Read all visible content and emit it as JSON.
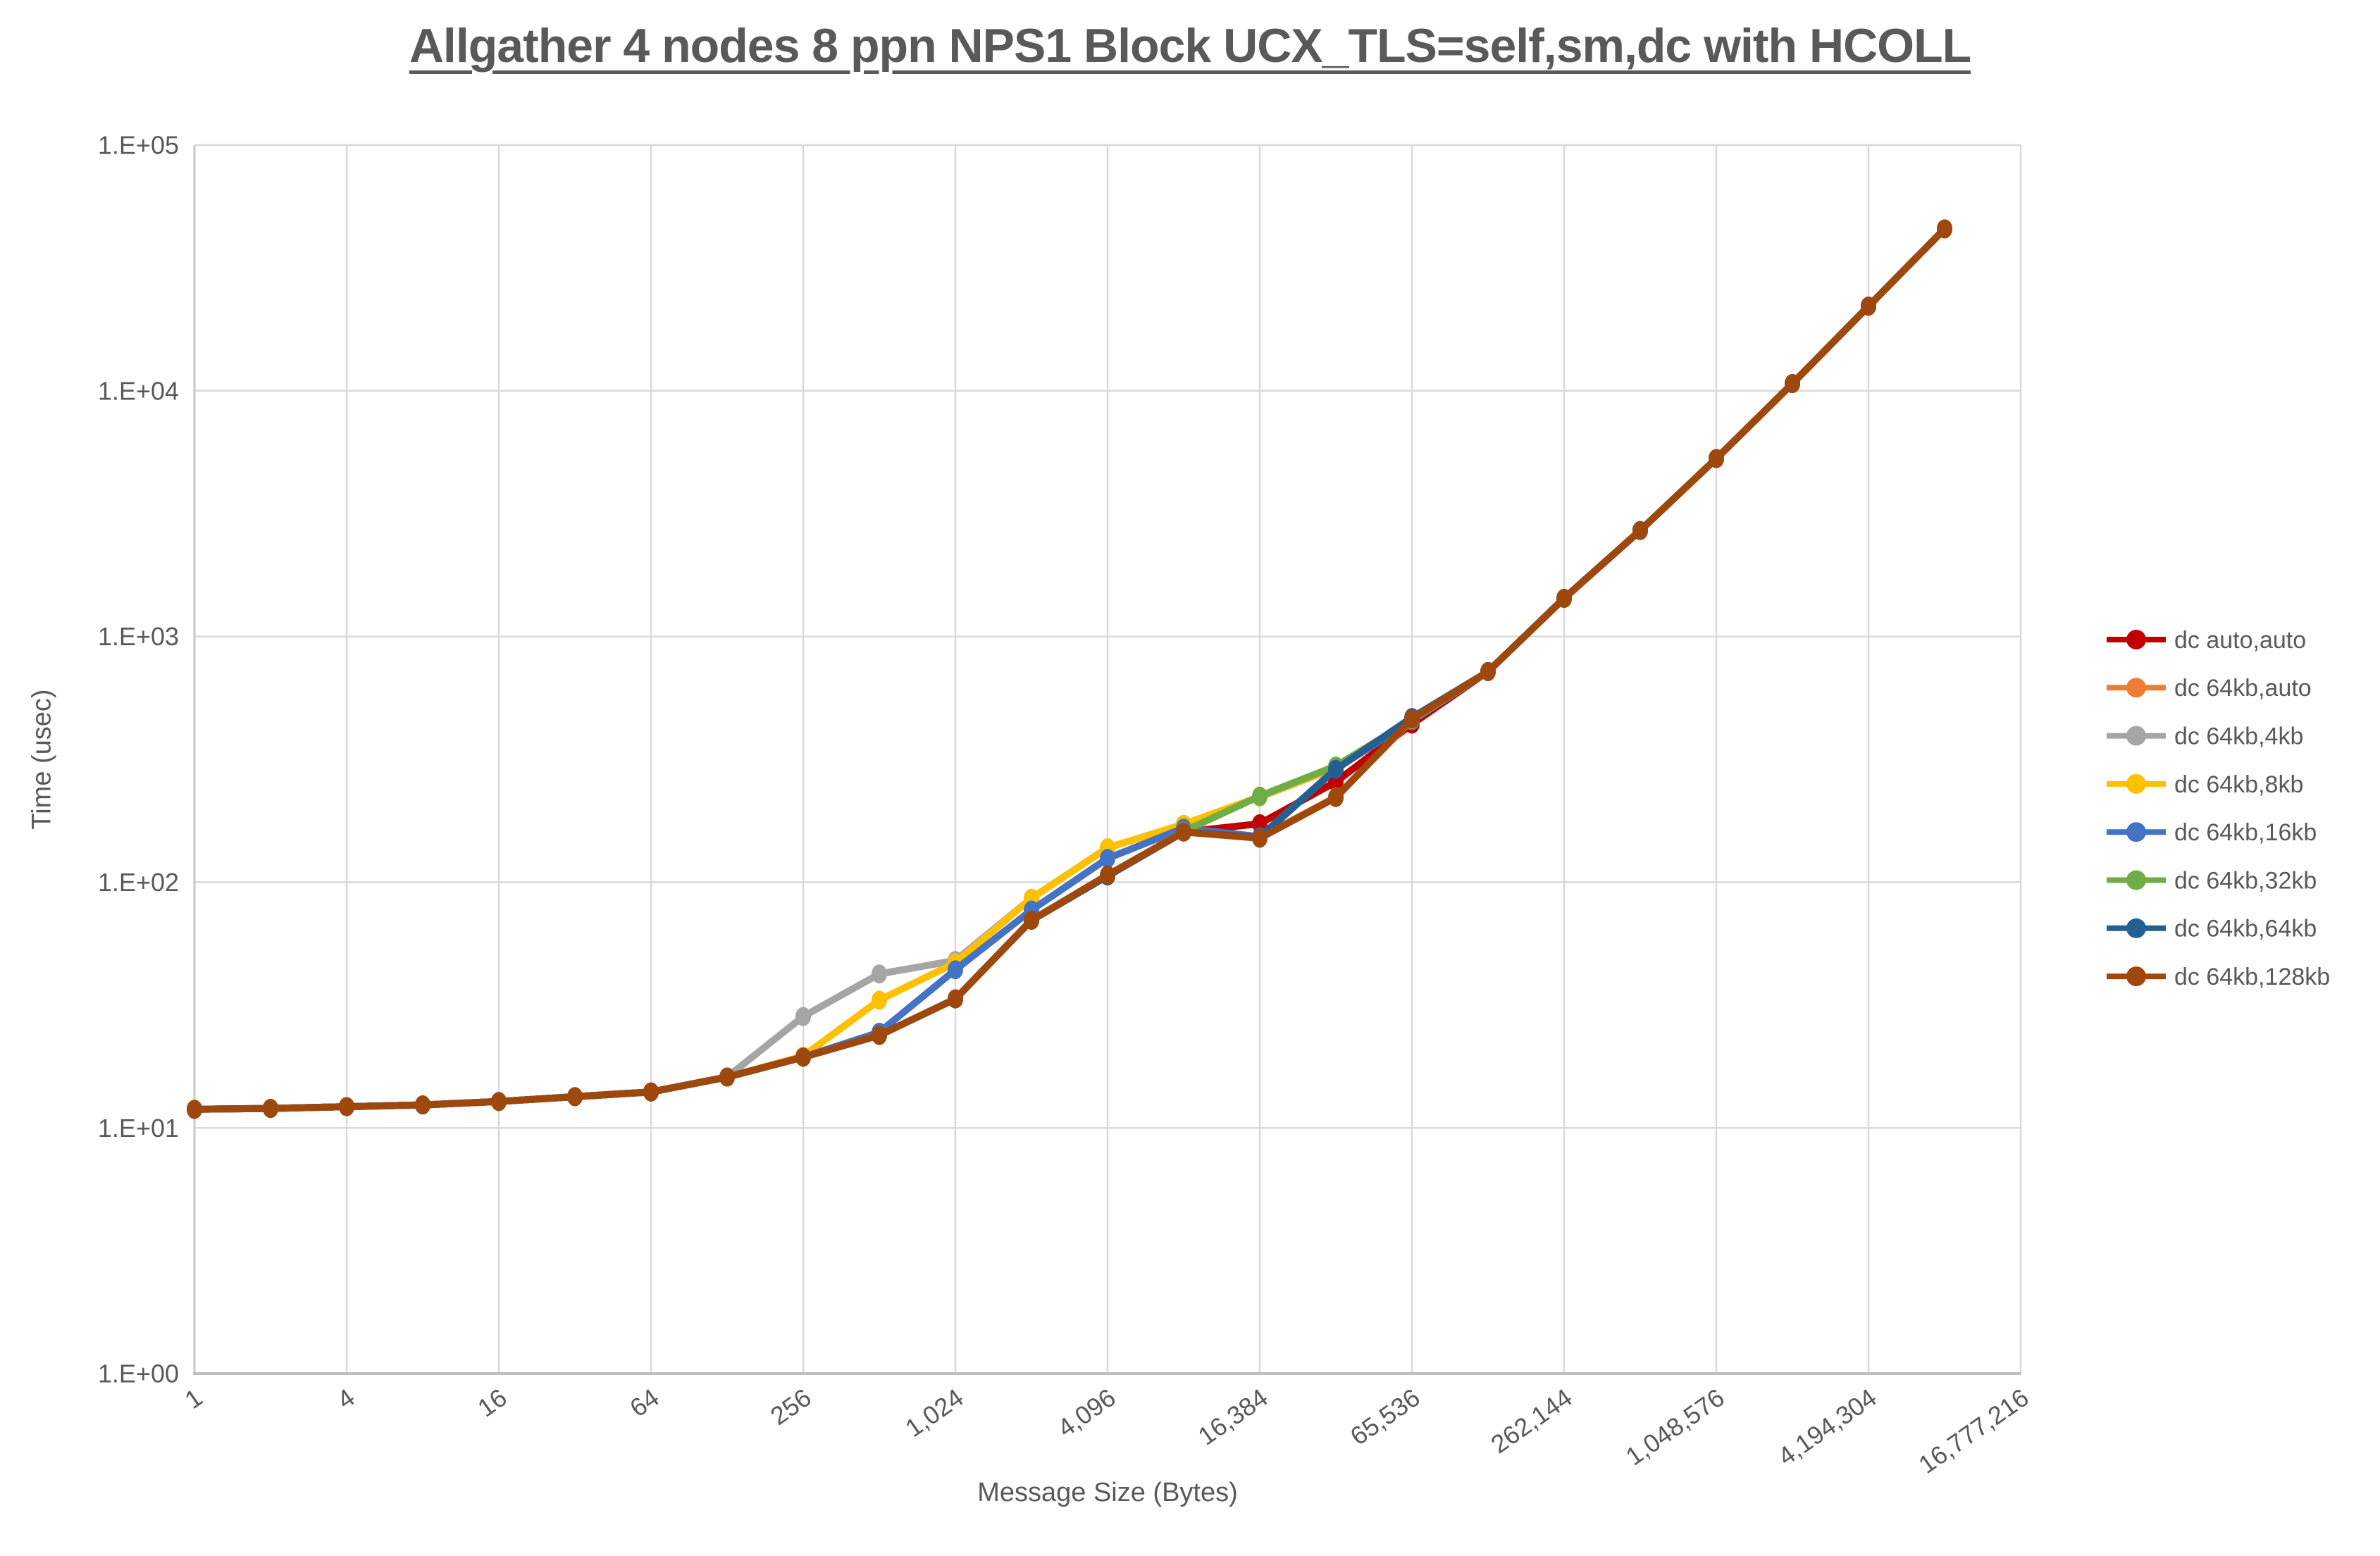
{
  "title": {
    "text": "Allgather 4 nodes 8 ppn NPS1 Block UCX_TLS=self,sm,dc with HCOLL",
    "color": "#595959"
  },
  "axes": {
    "x": {
      "title": "Message Size (Bytes)",
      "tick_labels": [
        "1",
        "4",
        "16",
        "64",
        "256",
        "1,024",
        "4,096",
        "16,384",
        "65,536",
        "262,144",
        "1,048,576",
        "4,194,304",
        "16,777,216"
      ]
    },
    "y": {
      "title": "Time (usec)",
      "tick_labels": [
        "1.E+00",
        "1.E+01",
        "1.E+02",
        "1.E+03",
        "1.E+04",
        "1.E+05"
      ]
    }
  },
  "legend": {
    "position": "right",
    "items": [
      {
        "label": "dc auto,auto",
        "color": "#C00000"
      },
      {
        "label": "dc 64kb,auto",
        "color": "#ED7D31"
      },
      {
        "label": "dc 64kb,4kb",
        "color": "#A5A5A5"
      },
      {
        "label": "dc 64kb,8kb",
        "color": "#FFC000"
      },
      {
        "label": "dc 64kb,16kb",
        "color": "#4472C4"
      },
      {
        "label": "dc 64kb,32kb",
        "color": "#70AD47"
      },
      {
        "label": "dc 64kb,64kb",
        "color": "#255E91"
      },
      {
        "label": "dc 64kb,128kb",
        "color": "#9E480E"
      }
    ]
  },
  "chart_data": {
    "type": "line",
    "title": "Allgather 4 nodes 8 ppn NPS1 Block UCX_TLS=self,sm,dc with HCOLL",
    "xlabel": "Message Size (Bytes)",
    "ylabel": "Time (usec)",
    "x_scale": "log2-category",
    "y_scale": "log10",
    "ylim": [
      1,
      100000
    ],
    "grid": true,
    "legend_position": "right",
    "x_tick_every": 2,
    "categories": [
      1,
      2,
      4,
      8,
      16,
      32,
      64,
      128,
      256,
      512,
      1024,
      2048,
      4096,
      8192,
      16384,
      32768,
      65536,
      131072,
      262144,
      524288,
      1048576,
      2097152,
      4194304,
      8388608,
      16777216
    ],
    "series": [
      {
        "name": "dc auto,auto",
        "color": "#C00000",
        "values": [
          11.9,
          12.0,
          12.2,
          12.4,
          12.8,
          13.4,
          14.0,
          16.1,
          19.4,
          23.8,
          33.5,
          70,
          106,
          160,
          173,
          256,
          440,
          720,
          1430,
          2700,
          5300,
          10700,
          22100,
          45600,
          null
        ]
      },
      {
        "name": "dc 64kb,auto",
        "color": "#ED7D31",
        "values": [
          11.9,
          12.0,
          12.2,
          12.4,
          12.8,
          13.4,
          14.0,
          16.1,
          19.4,
          23.8,
          33.5,
          70,
          106,
          160,
          152,
          222,
          458,
          720,
          1430,
          2700,
          5300,
          10700,
          22100,
          45600,
          null
        ]
      },
      {
        "name": "dc 64kb,4kb",
        "color": "#A5A5A5",
        "values": [
          11.9,
          12.0,
          12.2,
          12.4,
          12.8,
          13.4,
          14.0,
          16.1,
          28.4,
          42.3,
          48,
          86,
          138,
          172,
          222,
          292,
          455,
          720,
          1430,
          2700,
          5300,
          10700,
          22100,
          45600,
          null
        ]
      },
      {
        "name": "dc 64kb,8kb",
        "color": "#FFC000",
        "values": [
          11.9,
          12.0,
          12.2,
          12.4,
          12.8,
          13.4,
          14.0,
          16.1,
          19.6,
          33.1,
          47,
          86,
          138,
          172,
          223,
          292,
          455,
          720,
          1430,
          2700,
          5300,
          10700,
          22100,
          45600,
          null
        ]
      },
      {
        "name": "dc 64kb,16kb",
        "color": "#4472C4",
        "values": [
          11.9,
          12.0,
          12.2,
          12.4,
          12.8,
          13.4,
          14.0,
          16.1,
          19.4,
          24.5,
          44,
          77,
          125,
          166,
          153,
          289,
          455,
          720,
          1430,
          2700,
          5300,
          10700,
          22100,
          45600,
          null
        ]
      },
      {
        "name": "dc 64kb,32kb",
        "color": "#70AD47",
        "values": [
          11.9,
          12.0,
          12.2,
          12.4,
          12.8,
          13.4,
          14.0,
          16.1,
          19.4,
          23.8,
          33.5,
          70,
          106,
          161,
          224,
          297,
          458,
          720,
          1430,
          2700,
          5300,
          10700,
          22100,
          45600,
          null
        ]
      },
      {
        "name": "dc 64kb,64kb",
        "color": "#255E91",
        "values": [
          11.9,
          12.0,
          12.2,
          12.4,
          12.8,
          13.4,
          14.0,
          16.1,
          19.4,
          23.8,
          33.5,
          70,
          106,
          160,
          152,
          288,
          468,
          720,
          1430,
          2700,
          5300,
          10700,
          22100,
          45600,
          null
        ]
      },
      {
        "name": "dc 64kb,128kb",
        "color": "#9E480E",
        "values": [
          11.9,
          12.0,
          12.2,
          12.4,
          12.8,
          13.4,
          14.0,
          16.1,
          19.4,
          23.8,
          33.5,
          70,
          107,
          160,
          151,
          221,
          462,
          720,
          1430,
          2700,
          5300,
          10700,
          22100,
          45600,
          null
        ]
      }
    ]
  }
}
